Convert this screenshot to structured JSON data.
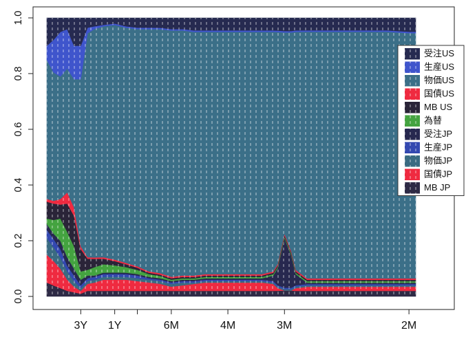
{
  "chart_data": {
    "type": "area",
    "stacked": true,
    "normalized": true,
    "title": "",
    "xlabel": "",
    "ylabel": "",
    "ylim": [
      0,
      1
    ],
    "y_ticks": [
      "0.0",
      "0.2",
      "0.4",
      "0.6",
      "0.8",
      "1.0"
    ],
    "x_tick_labels": [
      "3Y",
      "1Y",
      "6M",
      "4M",
      "3M",
      "2M"
    ],
    "x_tick_positions": [
      1.5,
      3.0,
      5.5,
      8.0,
      10.5,
      16.0
    ],
    "unlabeled_ticks": [
      4.0
    ],
    "x": [
      0.0,
      0.3,
      0.6,
      0.9,
      1.2,
      1.5,
      1.8,
      2.1,
      2.5,
      3.0,
      3.5,
      4.0,
      4.5,
      5.0,
      5.5,
      6.0,
      6.5,
      7.0,
      7.5,
      8.0,
      8.5,
      9.0,
      9.5,
      10.0,
      10.2,
      10.5,
      10.8,
      11.0,
      11.5,
      12.0,
      13.0,
      14.0,
      15.0,
      16.0,
      16.3
    ],
    "legend_position": "top-right",
    "series": [
      {
        "name": "MB JP",
        "color": "#2e2a45",
        "values": [
          0.05,
          0.04,
          0.03,
          0.02,
          0.015,
          0.01,
          0.02,
          0.02,
          0.02,
          0.02,
          0.02,
          0.02,
          0.02,
          0.02,
          0.02,
          0.02,
          0.02,
          0.02,
          0.02,
          0.02,
          0.02,
          0.02,
          0.02,
          0.02,
          0.02,
          0.02,
          0.02,
          0.02,
          0.02,
          0.02,
          0.02,
          0.02,
          0.02,
          0.02,
          0.02
        ]
      },
      {
        "name": "国債JP",
        "color": "#ef2a40",
        "values": [
          0.1,
          0.09,
          0.07,
          0.04,
          0.02,
          0.01,
          0.025,
          0.03,
          0.04,
          0.04,
          0.04,
          0.035,
          0.03,
          0.025,
          0.015,
          0.02,
          0.025,
          0.03,
          0.03,
          0.03,
          0.03,
          0.03,
          0.03,
          0.025,
          0.01,
          0.0,
          0.0,
          0.01,
          0.015,
          0.015,
          0.015,
          0.015,
          0.015,
          0.015,
          0.015
        ]
      },
      {
        "name": "物価JP",
        "color": "#3a6b82",
        "values": [
          0.06,
          0.05,
          0.04,
          0.03,
          0.02,
          0.01,
          0.01,
          0.01,
          0.01,
          0.01,
          0.01,
          0.01,
          0.01,
          0.01,
          0.01,
          0.01,
          0.005,
          0.005,
          0.005,
          0.005,
          0.005,
          0.005,
          0.005,
          0.005,
          0.005,
          0.005,
          0.005,
          0.005,
          0.005,
          0.005,
          0.005,
          0.005,
          0.005,
          0.005,
          0.005
        ]
      },
      {
        "name": "生産JP",
        "color": "#3348b0",
        "values": [
          0.03,
          0.03,
          0.03,
          0.02,
          0.02,
          0.01,
          0.01,
          0.01,
          0.01,
          0.01,
          0.01,
          0.01,
          0.005,
          0.005,
          0.005,
          0.005,
          0.005,
          0.005,
          0.005,
          0.005,
          0.005,
          0.005,
          0.005,
          0.005,
          0.005,
          0.005,
          0.005,
          0.005,
          0.005,
          0.005,
          0.005,
          0.005,
          0.005,
          0.005,
          0.005
        ]
      },
      {
        "name": "受注JP",
        "color": "#27284f",
        "values": [
          0.02,
          0.02,
          0.03,
          0.03,
          0.025,
          0.02,
          0.01,
          0.005,
          0.005,
          0.005,
          0.005,
          0.005,
          0.005,
          0.005,
          0.005,
          0.005,
          0.005,
          0.005,
          0.005,
          0.005,
          0.005,
          0.005,
          0.005,
          0.02,
          0.06,
          0.17,
          0.11,
          0.04,
          0.005,
          0.005,
          0.005,
          0.005,
          0.005,
          0.005,
          0.005
        ]
      },
      {
        "name": "為替",
        "color": "#44a340",
        "values": [
          0.02,
          0.05,
          0.08,
          0.09,
          0.08,
          0.03,
          0.02,
          0.03,
          0.03,
          0.025,
          0.02,
          0.015,
          0.01,
          0.008,
          0.005,
          0.005,
          0.005,
          0.005,
          0.005,
          0.005,
          0.005,
          0.005,
          0.005,
          0.005,
          0.005,
          0.005,
          0.005,
          0.005,
          0.005,
          0.005,
          0.005,
          0.005,
          0.005,
          0.005,
          0.005
        ]
      },
      {
        "name": "MB US",
        "color": "#2a2438",
        "values": [
          0.06,
          0.06,
          0.05,
          0.1,
          0.11,
          0.08,
          0.04,
          0.03,
          0.02,
          0.015,
          0.01,
          0.008,
          0.005,
          0.005,
          0.005,
          0.005,
          0.005,
          0.005,
          0.005,
          0.005,
          0.005,
          0.005,
          0.005,
          0.005,
          0.005,
          0.005,
          0.005,
          0.005,
          0.005,
          0.005,
          0.005,
          0.005,
          0.005,
          0.005,
          0.005
        ]
      },
      {
        "name": "国債US",
        "color": "#ef2a40",
        "values": [
          0.01,
          0.01,
          0.02,
          0.04,
          0.03,
          0.01,
          0.005,
          0.005,
          0.005,
          0.005,
          0.005,
          0.005,
          0.005,
          0.005,
          0.005,
          0.005,
          0.005,
          0.005,
          0.005,
          0.005,
          0.005,
          0.005,
          0.005,
          0.005,
          0.005,
          0.005,
          0.005,
          0.005,
          0.005,
          0.005,
          0.005,
          0.005,
          0.005,
          0.005,
          0.005
        ]
      },
      {
        "name": "物価US",
        "color": "#3b6f88",
        "values": [
          0.5,
          0.47,
          0.44,
          0.44,
          0.46,
          0.6,
          0.8,
          0.82,
          0.825,
          0.83,
          0.84,
          0.85,
          0.865,
          0.87,
          0.88,
          0.878,
          0.875,
          0.87,
          0.87,
          0.87,
          0.87,
          0.87,
          0.87,
          0.86,
          0.82,
          0.69,
          0.75,
          0.855,
          0.89,
          0.89,
          0.89,
          0.89,
          0.89,
          0.885,
          0.885
        ]
      },
      {
        "name": "生産US",
        "color": "#3f55cc",
        "values": [
          0.05,
          0.12,
          0.16,
          0.14,
          0.12,
          0.12,
          0.02,
          0.01,
          0.005,
          0.005,
          0.005,
          0.005,
          0.005,
          0.005,
          0.005,
          0.005,
          0.005,
          0.005,
          0.005,
          0.005,
          0.005,
          0.005,
          0.005,
          0.005,
          0.005,
          0.005,
          0.005,
          0.005,
          0.005,
          0.005,
          0.005,
          0.005,
          0.005,
          0.005,
          0.005
        ]
      },
      {
        "name": "受注US",
        "color": "#262a50",
        "values": [
          0.1,
          0.08,
          0.05,
          0.04,
          0.1,
          0.1,
          0.035,
          0.03,
          0.025,
          0.02,
          0.03,
          0.035,
          0.035,
          0.035,
          0.04,
          0.04,
          0.045,
          0.045,
          0.045,
          0.045,
          0.045,
          0.045,
          0.045,
          0.045,
          0.045,
          0.045,
          0.045,
          0.045,
          0.045,
          0.045,
          0.045,
          0.045,
          0.045,
          0.05,
          0.05
        ]
      }
    ]
  }
}
